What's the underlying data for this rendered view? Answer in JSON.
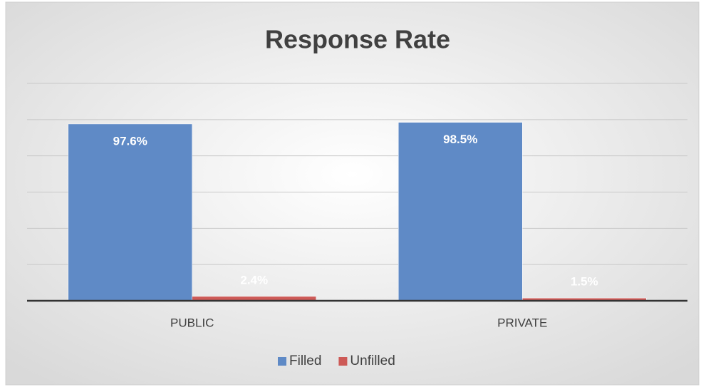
{
  "chart_data": {
    "type": "bar",
    "title": "Response Rate",
    "categories": [
      "PUBLIC",
      "PRIVATE"
    ],
    "series": [
      {
        "name": "Filled",
        "color": "#5f8ac6",
        "values": [
          97.6,
          98.5
        ],
        "value_labels": [
          "97.6%",
          "98.5%"
        ]
      },
      {
        "name": "Unfilled",
        "color": "#cd5a57",
        "values": [
          2.4,
          1.5
        ],
        "value_labels": [
          "2.4%",
          "1.5%"
        ]
      }
    ],
    "ylim": [
      0,
      120
    ],
    "yticks": [
      0,
      20,
      40,
      60,
      80,
      100,
      120
    ],
    "grid": true,
    "legend": "bottom"
  }
}
